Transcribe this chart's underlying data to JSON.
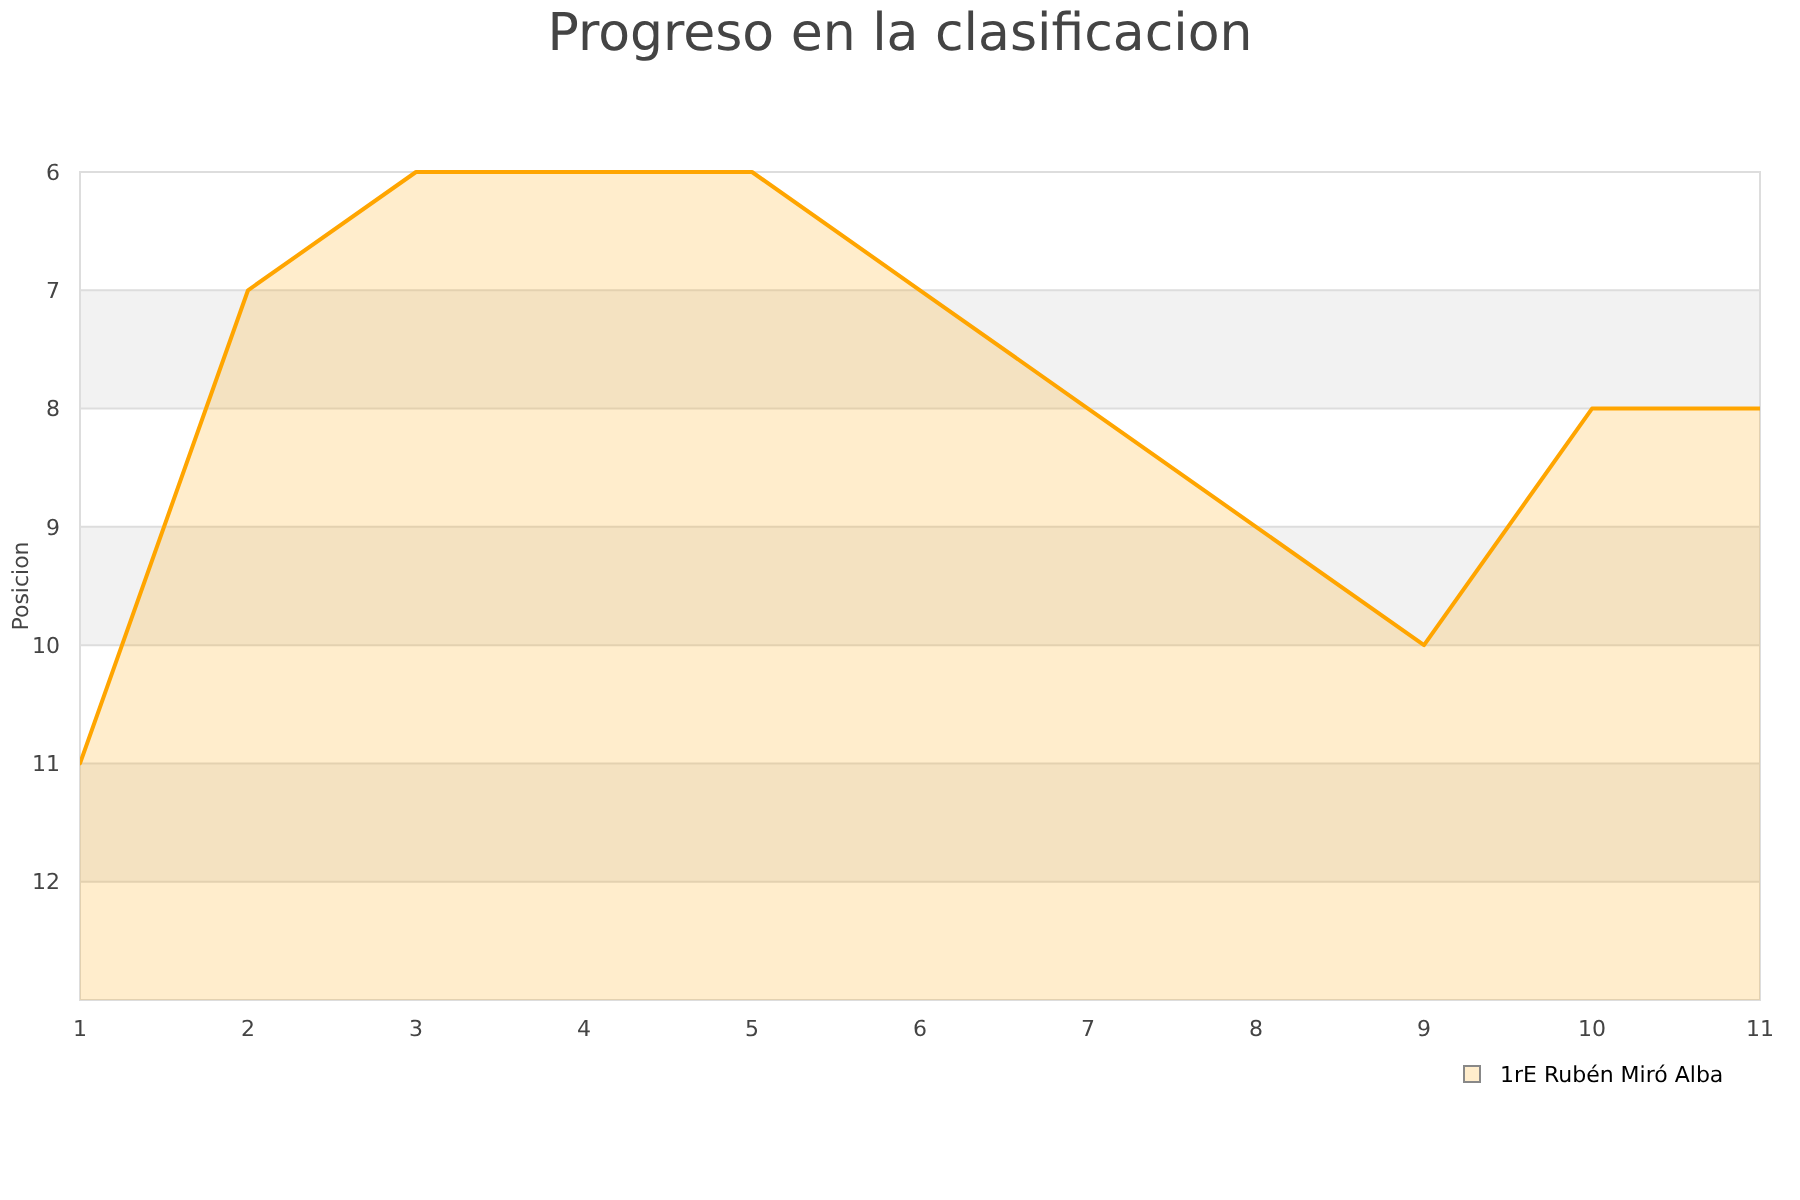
{
  "chart_data": {
    "type": "area",
    "title": "Progreso en la clasificacion",
    "ylabel": "Posicion",
    "x": [
      1,
      2,
      3,
      4,
      5,
      6,
      7,
      8,
      9,
      10,
      11
    ],
    "series": [
      {
        "name": "1rE Rubén Miró Alba",
        "color": "#ffa500",
        "values": [
          11,
          7,
          6,
          6,
          6,
          7,
          8,
          9,
          10,
          8,
          8
        ]
      }
    ],
    "xlim": [
      1,
      11
    ],
    "xticks": [
      1,
      2,
      3,
      4,
      5,
      6,
      7,
      8,
      9,
      10,
      11
    ],
    "ylim": [
      13,
      6
    ],
    "yticks": [
      6,
      7,
      8,
      9,
      10,
      11,
      12,
      {
        "value": 13,
        "label": null
      }
    ],
    "grid": "y",
    "legend": "bottom right",
    "marker": "none",
    "line_style": "solid",
    "bands": [
      {
        "axis": "y",
        "from": 7,
        "to": 8,
        "color": "#f2f2f2"
      },
      {
        "axis": "y",
        "from": 9,
        "to": 10,
        "color": "#f2f2f2"
      },
      {
        "axis": "y",
        "from": 11,
        "to": 12,
        "color": "#f2f2f2"
      }
    ]
  }
}
